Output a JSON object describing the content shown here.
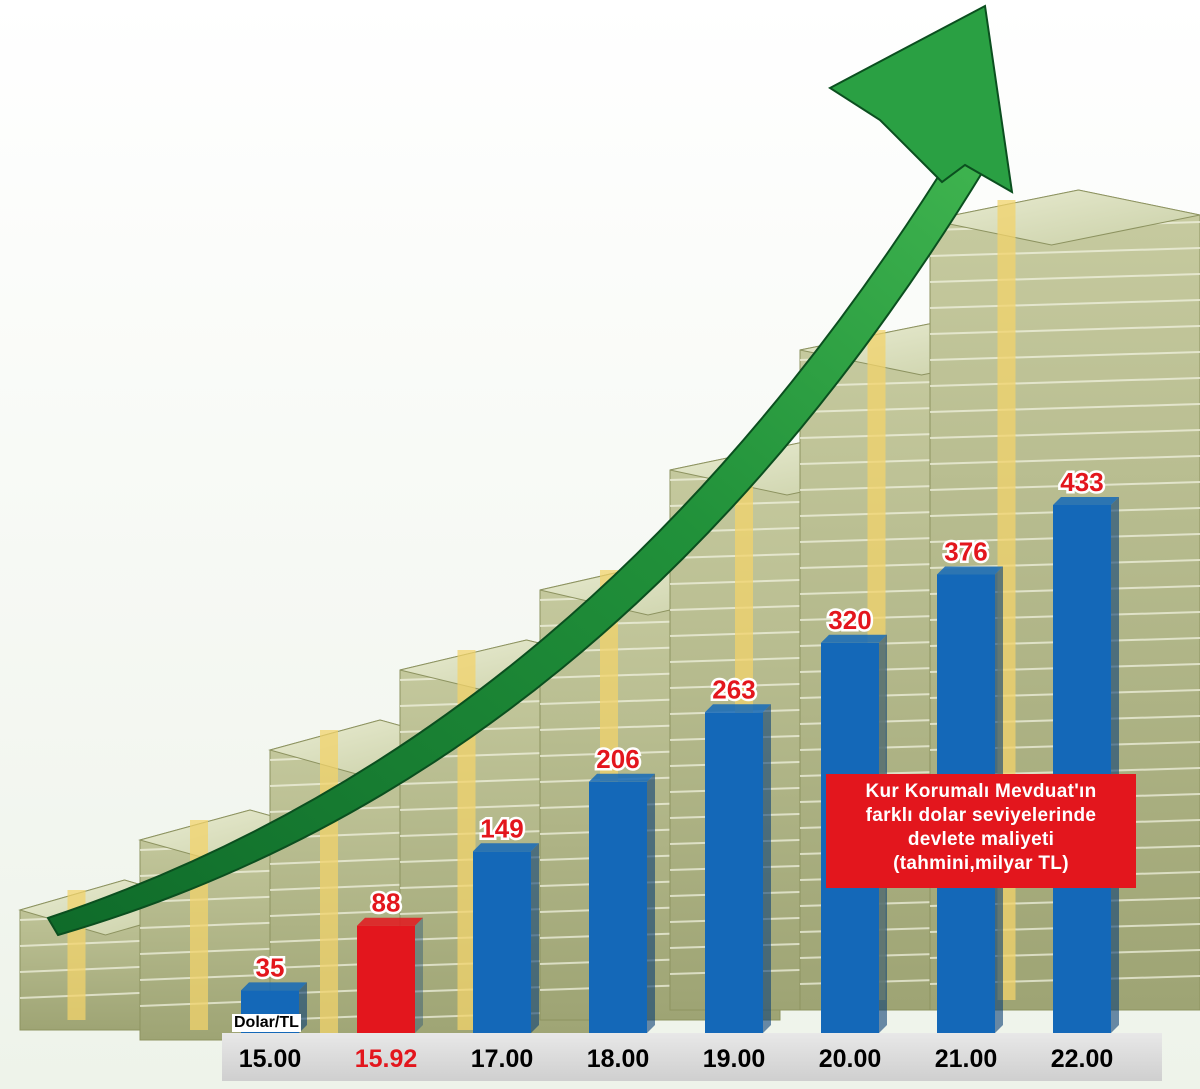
{
  "chart_data": {
    "type": "bar",
    "title_lines": [
      "Kur Korumalı Mevduat'ın",
      "farklı dolar seviyelerinde",
      "devlete maliyeti",
      "(tahmini,milyar TL)"
    ],
    "xlabel": "Dolar/TL",
    "categories": [
      "15.00",
      "15.92",
      "17.00",
      "18.00",
      "19.00",
      "20.00",
      "21.00",
      "22.00"
    ],
    "values": [
      35,
      88,
      149,
      206,
      263,
      320,
      376,
      433
    ],
    "highlight_index": 1,
    "ylim": [
      0,
      433
    ],
    "grid": false,
    "colors": {
      "bar": "#1468b8",
      "bar_highlight": "#e3161d",
      "value_label": "#e3161d",
      "category_label": "#000000",
      "category_highlight": "#e3161d",
      "arrow": "#1f8a36"
    }
  }
}
